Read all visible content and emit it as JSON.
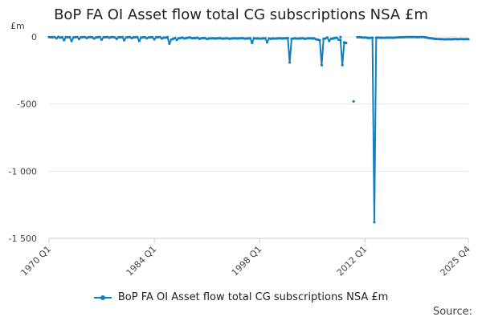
{
  "chart_data": {
    "type": "line",
    "title": "BoP FA OI Asset flow total CG subscriptions NSA £m",
    "ylabel": "£m",
    "xlabel": "",
    "ylim": [
      -1500,
      0
    ],
    "yticks": [
      0,
      -500,
      -1000,
      -1500
    ],
    "ytick_labels": [
      "0",
      "-500",
      "-1 000",
      "-1 500"
    ],
    "xlim": [
      1970,
      2025.75
    ],
    "xticks": [
      1970,
      1984,
      1998,
      2012,
      2025.75
    ],
    "xtick_labels": [
      "1970 Q1",
      "1984 Q1",
      "1998 Q1",
      "2012 Q1",
      "2025 Q4"
    ],
    "grid": true,
    "legend_position": "bottom",
    "color": "#0f7fc0",
    "series": [
      {
        "name": "BoP FA OI Asset flow total CG subscriptions NSA £m",
        "segments": [
          {
            "start": 1970,
            "values": [
              -1,
              -3,
              -2,
              -1,
              -10,
              0,
              -5,
              -2,
              -24,
              -1,
              -3,
              -2,
              -30,
              -4,
              -2,
              -1,
              -15,
              -3,
              -2,
              -1,
              -8,
              -2,
              -1,
              -3,
              -12,
              -4,
              -2,
              -1,
              -20,
              -3,
              -2,
              -1,
              -6,
              -2,
              -1,
              -4,
              -14,
              -2,
              -3,
              -1,
              -25,
              -4,
              -2,
              -1,
              -9,
              -3,
              -2,
              -1,
              -30,
              -5,
              -3,
              -2,
              -10,
              -4,
              -3,
              -2,
              -18,
              -3,
              -2,
              -1,
              -12,
              -6,
              -5,
              -2,
              -50,
              -20,
              -15,
              -8,
              -22,
              -10,
              -8,
              -5,
              -12,
              -8,
              -6,
              -4,
              -10,
              -9,
              -8,
              -6,
              -14,
              -10,
              -9,
              -8,
              -16,
              -12,
              -11,
              -10,
              -12,
              -11,
              -10,
              -9,
              -13,
              -12,
              -11,
              -10,
              -14,
              -12,
              -11,
              -10,
              -12,
              -11,
              -10,
              -9,
              -13,
              -12,
              -11,
              -10,
              -45,
              -10,
              -12,
              -11,
              -13,
              -12,
              -11,
              -10,
              -40,
              -12,
              -14,
              -11,
              -13,
              -12,
              -11,
              -10,
              -12,
              -11,
              -10,
              -9,
              -190,
              -15,
              -12,
              -11,
              -13,
              -12,
              -11,
              -10,
              -14,
              -12,
              -11,
              -10,
              -12,
              -11,
              -18,
              -20,
              -25,
              -210,
              -15,
              -12,
              -5,
              -30,
              -14,
              -12,
              -8,
              -6,
              -20,
              -22,
              -210,
              -40,
              -45
            ]
          },
          {
            "start": 2008.75,
            "values": [
              -1
            ]
          },
          {
            "start": 2010.5,
            "values": [
              -480
            ]
          },
          {
            "start": 2011,
            "values": [
              -2,
              -2,
              -3,
              -5,
              -4,
              -6,
              -8,
              -7,
              -6,
              -1380,
              -6,
              -5,
              -6,
              -6,
              -7,
              -6,
              -5,
              -6,
              -5,
              -6,
              -5,
              -4,
              -3,
              -3,
              -2,
              -2,
              -1,
              -1,
              -1,
              -1,
              -1,
              -1,
              -2,
              -1,
              -1,
              -1,
              -3,
              -5,
              -8,
              -10,
              -12,
              -14,
              -15,
              -16,
              -17,
              -17,
              -18,
              -18,
              -17,
              -17,
              -18,
              -17,
              -16,
              -17,
              -17,
              -16,
              -17,
              -17,
              -16,
              -17
            ]
          }
        ]
      }
    ]
  },
  "source_label": "Source:"
}
